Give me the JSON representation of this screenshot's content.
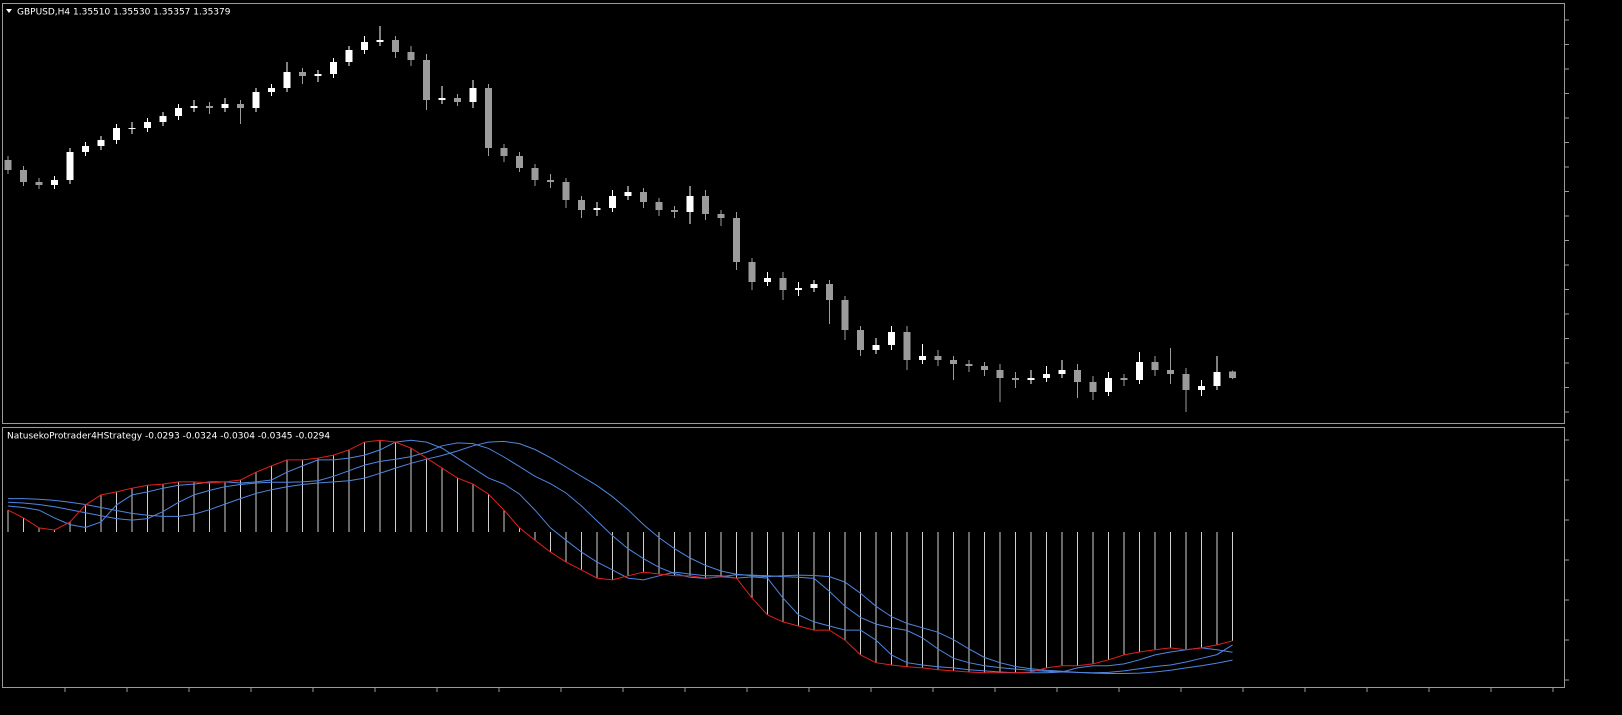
{
  "chart_data": [
    {
      "type": "candlestick",
      "title": "GBPUSD,H4  1.35510 1.35530 1.35357 1.35379",
      "up_color": "#ffffff",
      "down_color": "#9b9b9b",
      "ylim": [
        1.3448,
        1.4284
      ],
      "open": [
        1.3974,
        1.3954,
        1.393,
        1.3924,
        1.3934,
        1.399,
        1.4002,
        1.4014,
        1.4038,
        1.4038,
        1.405,
        1.4062,
        1.4078,
        1.4082,
        1.4078,
        1.4086,
        1.4078,
        1.411,
        1.4118,
        1.415,
        1.4142,
        1.4146,
        1.417,
        1.4194,
        1.421,
        1.4214,
        1.419,
        1.4174,
        1.4094,
        1.4098,
        1.409,
        1.4118,
        1.3998,
        1.3982,
        1.3958,
        1.3934,
        1.393,
        1.3894,
        1.3874,
        1.3878,
        1.3902,
        1.391,
        1.389,
        1.3874,
        1.387,
        1.3902,
        1.3866,
        1.3858,
        1.377,
        1.373,
        1.3738,
        1.3714,
        1.3718,
        1.3726,
        1.3694,
        1.3634,
        1.3594,
        1.3604,
        1.363,
        1.3574,
        1.3582,
        1.3574,
        1.3566,
        1.3562,
        1.3554,
        1.3538,
        1.3534,
        1.3538,
        1.3546,
        1.3554,
        1.353,
        1.351,
        1.3538,
        1.3534,
        1.357,
        1.3554,
        1.3546,
        1.3514,
        1.3522,
        1.3551
      ],
      "high": [
        1.3982,
        1.3962,
        1.3938,
        1.3942,
        1.3998,
        1.401,
        1.4022,
        1.4046,
        1.405,
        1.4058,
        1.407,
        1.4086,
        1.4094,
        1.409,
        1.4098,
        1.4094,
        1.4118,
        1.4126,
        1.417,
        1.4158,
        1.4154,
        1.4178,
        1.4202,
        1.4222,
        1.4242,
        1.4222,
        1.4202,
        1.4186,
        1.4122,
        1.4106,
        1.4134,
        1.4126,
        1.4006,
        1.399,
        1.3966,
        1.3946,
        1.3938,
        1.3902,
        1.389,
        1.3914,
        1.3922,
        1.3918,
        1.3898,
        1.3882,
        1.3922,
        1.3914,
        1.3874,
        1.387,
        1.3778,
        1.375,
        1.375,
        1.373,
        1.3734,
        1.3734,
        1.3702,
        1.3642,
        1.3618,
        1.3642,
        1.3642,
        1.3606,
        1.3594,
        1.3582,
        1.3574,
        1.357,
        1.3566,
        1.355,
        1.3554,
        1.3562,
        1.3574,
        1.3566,
        1.3542,
        1.355,
        1.3546,
        1.359,
        1.3582,
        1.3598,
        1.3558,
        1.3534,
        1.3582,
        1.3553
      ],
      "low": [
        1.3946,
        1.3922,
        1.3916,
        1.3916,
        1.3926,
        1.3982,
        1.3994,
        1.4006,
        1.4026,
        1.403,
        1.4042,
        1.4054,
        1.407,
        1.4066,
        1.407,
        1.4046,
        1.407,
        1.4102,
        1.411,
        1.4126,
        1.413,
        1.4138,
        1.4162,
        1.4186,
        1.4202,
        1.4178,
        1.4162,
        1.4074,
        1.4086,
        1.4082,
        1.4078,
        1.3982,
        1.397,
        1.395,
        1.3922,
        1.3918,
        1.3878,
        1.3858,
        1.3862,
        1.387,
        1.3894,
        1.3878,
        1.3862,
        1.3858,
        1.3846,
        1.3854,
        1.3842,
        1.3754,
        1.3714,
        1.3722,
        1.3694,
        1.3702,
        1.371,
        1.3646,
        1.3614,
        1.3582,
        1.3586,
        1.3594,
        1.3554,
        1.3566,
        1.3562,
        1.3534,
        1.355,
        1.3542,
        1.349,
        1.3518,
        1.3526,
        1.353,
        1.3538,
        1.3498,
        1.3494,
        1.3502,
        1.3522,
        1.3526,
        1.3542,
        1.3526,
        1.347,
        1.3502,
        1.3514,
        1.35357
      ],
      "close": [
        1.3954,
        1.393,
        1.3924,
        1.3934,
        1.399,
        1.4002,
        1.4014,
        1.4038,
        1.4038,
        1.405,
        1.4062,
        1.4078,
        1.4082,
        1.4078,
        1.4086,
        1.4078,
        1.411,
        1.4118,
        1.415,
        1.4142,
        1.4146,
        1.417,
        1.4194,
        1.421,
        1.4214,
        1.419,
        1.4174,
        1.4094,
        1.4098,
        1.409,
        1.4118,
        1.3998,
        1.3982,
        1.3958,
        1.3934,
        1.393,
        1.3894,
        1.3874,
        1.3878,
        1.3902,
        1.391,
        1.389,
        1.3874,
        1.387,
        1.3902,
        1.3866,
        1.3858,
        1.377,
        1.373,
        1.3738,
        1.3714,
        1.3718,
        1.3726,
        1.3694,
        1.3634,
        1.3594,
        1.3604,
        1.363,
        1.3574,
        1.3582,
        1.3574,
        1.3566,
        1.3562,
        1.3554,
        1.3538,
        1.3534,
        1.3538,
        1.3546,
        1.3554,
        1.353,
        1.351,
        1.3538,
        1.3534,
        1.357,
        1.3554,
        1.3546,
        1.3514,
        1.3522,
        1.355,
        1.35379
      ]
    },
    {
      "type": "line",
      "title": "NatusekoProtrader4HStrategy -0.0293 -0.0324 -0.0304 -0.0345 -0.0294",
      "ylim": [
        -0.042,
        0.028
      ],
      "histogram_series": 0,
      "histogram_color": "#cfcfcf",
      "series": [
        {
          "color": "#e0201c",
          "values": [
            0.0059,
            0.0038,
            0.0011,
            0.0005,
            0.0027,
            0.0073,
            0.01,
            0.0108,
            0.0118,
            0.0126,
            0.0129,
            0.0135,
            0.0135,
            0.0132,
            0.0135,
            0.014,
            0.0161,
            0.0178,
            0.0194,
            0.0194,
            0.0199,
            0.0207,
            0.0221,
            0.0242,
            0.0247,
            0.0242,
            0.0226,
            0.0199,
            0.0172,
            0.0145,
            0.0129,
            0.0102,
            0.0059,
            0.0011,
            -0.0022,
            -0.0054,
            -0.0081,
            -0.0102,
            -0.0124,
            -0.0129,
            -0.0118,
            -0.0108,
            -0.0113,
            -0.0118,
            -0.0118,
            -0.0124,
            -0.0121,
            -0.0124,
            -0.0178,
            -0.0223,
            -0.0242,
            -0.0253,
            -0.0264,
            -0.0264,
            -0.0291,
            -0.0331,
            -0.0352,
            -0.0358,
            -0.0363,
            -0.0366,
            -0.0371,
            -0.0374,
            -0.0377,
            -0.0379,
            -0.0379,
            -0.0379,
            -0.0377,
            -0.0366,
            -0.036,
            -0.036,
            -0.0355,
            -0.0344,
            -0.0331,
            -0.0323,
            -0.0317,
            -0.0312,
            -0.0317,
            -0.0312,
            -0.0304,
            -0.0293
          ]
        },
        {
          "color": "#4f86e0",
          "values": [
            0.007,
            0.0066,
            0.0059,
            0.0038,
            0.002,
            0.0012,
            0.0027,
            0.0073,
            0.01,
            0.0108,
            0.0118,
            0.0126,
            0.0129,
            0.0135,
            0.0135,
            0.0132,
            0.0135,
            0.014,
            0.0161,
            0.0178,
            0.0194,
            0.0194,
            0.0199,
            0.0207,
            0.0221,
            0.0242,
            0.0247,
            0.0242,
            0.0226,
            0.0199,
            0.0172,
            0.0145,
            0.0129,
            0.0102,
            0.0059,
            0.0011,
            -0.0022,
            -0.0054,
            -0.0081,
            -0.0102,
            -0.0124,
            -0.0129,
            -0.0118,
            -0.0108,
            -0.0113,
            -0.0118,
            -0.0118,
            -0.0124,
            -0.0121,
            -0.0124,
            -0.0178,
            -0.0223,
            -0.0242,
            -0.0253,
            -0.0264,
            -0.0264,
            -0.0291,
            -0.0331,
            -0.0352,
            -0.0358,
            -0.0363,
            -0.0366,
            -0.0371,
            -0.0374,
            -0.0377,
            -0.0379,
            -0.0379,
            -0.0379,
            -0.0377,
            -0.0366,
            -0.036,
            -0.036,
            -0.0355,
            -0.0344,
            -0.0331,
            -0.0323,
            -0.0317,
            -0.0312,
            -0.0317,
            -0.0324
          ]
        },
        {
          "color": "#4f86e0",
          "values": [
            0.008,
            0.0078,
            0.0074,
            0.0068,
            0.006,
            0.0052,
            0.0044,
            0.0036,
            0.0032,
            0.0036,
            0.0055,
            0.008,
            0.01,
            0.0112,
            0.0122,
            0.0128,
            0.0132,
            0.0134,
            0.0134,
            0.0135,
            0.0138,
            0.015,
            0.0165,
            0.018,
            0.019,
            0.0196,
            0.0203,
            0.0215,
            0.0232,
            0.024,
            0.0238,
            0.0225,
            0.0202,
            0.0176,
            0.015,
            0.013,
            0.0105,
            0.007,
            0.003,
            -0.001,
            -0.0045,
            -0.0072,
            -0.0095,
            -0.0112,
            -0.0122,
            -0.0125,
            -0.012,
            -0.0115,
            -0.0116,
            -0.0118,
            -0.012,
            -0.0122,
            -0.0125,
            -0.016,
            -0.02,
            -0.023,
            -0.0248,
            -0.0258,
            -0.0265,
            -0.0285,
            -0.0315,
            -0.034,
            -0.0352,
            -0.036,
            -0.0365,
            -0.0369,
            -0.0372,
            -0.0375,
            -0.0377,
            -0.0378,
            -0.0379,
            -0.0378,
            -0.0374,
            -0.0368,
            -0.0362,
            -0.0358,
            -0.035,
            -0.034,
            -0.033,
            -0.0304
          ]
        },
        {
          "color": "#4f86e0",
          "values": [
            0.009,
            0.009,
            0.0088,
            0.0085,
            0.008,
            0.0074,
            0.0066,
            0.0058,
            0.005,
            0.0045,
            0.0042,
            0.0042,
            0.0048,
            0.006,
            0.0075,
            0.009,
            0.0104,
            0.0114,
            0.0122,
            0.0128,
            0.0132,
            0.0135,
            0.0138,
            0.0145,
            0.0158,
            0.0172,
            0.0185,
            0.0196,
            0.0206,
            0.0218,
            0.0232,
            0.0242,
            0.0244,
            0.0238,
            0.0222,
            0.02,
            0.0175,
            0.015,
            0.0125,
            0.0095,
            0.006,
            0.002,
            -0.0015,
            -0.0045,
            -0.007,
            -0.009,
            -0.0105,
            -0.0114,
            -0.0118,
            -0.012,
            -0.0118,
            -0.0116,
            -0.0117,
            -0.012,
            -0.0135,
            -0.0165,
            -0.02,
            -0.0228,
            -0.0246,
            -0.0258,
            -0.027,
            -0.029,
            -0.0315,
            -0.0338,
            -0.0352,
            -0.0362,
            -0.0368,
            -0.0372,
            -0.0375,
            -0.0378,
            -0.038,
            -0.0381,
            -0.0381,
            -0.038,
            -0.0377,
            -0.0372,
            -0.0366,
            -0.036,
            -0.0353,
            -0.0345
          ]
        }
      ]
    }
  ]
}
